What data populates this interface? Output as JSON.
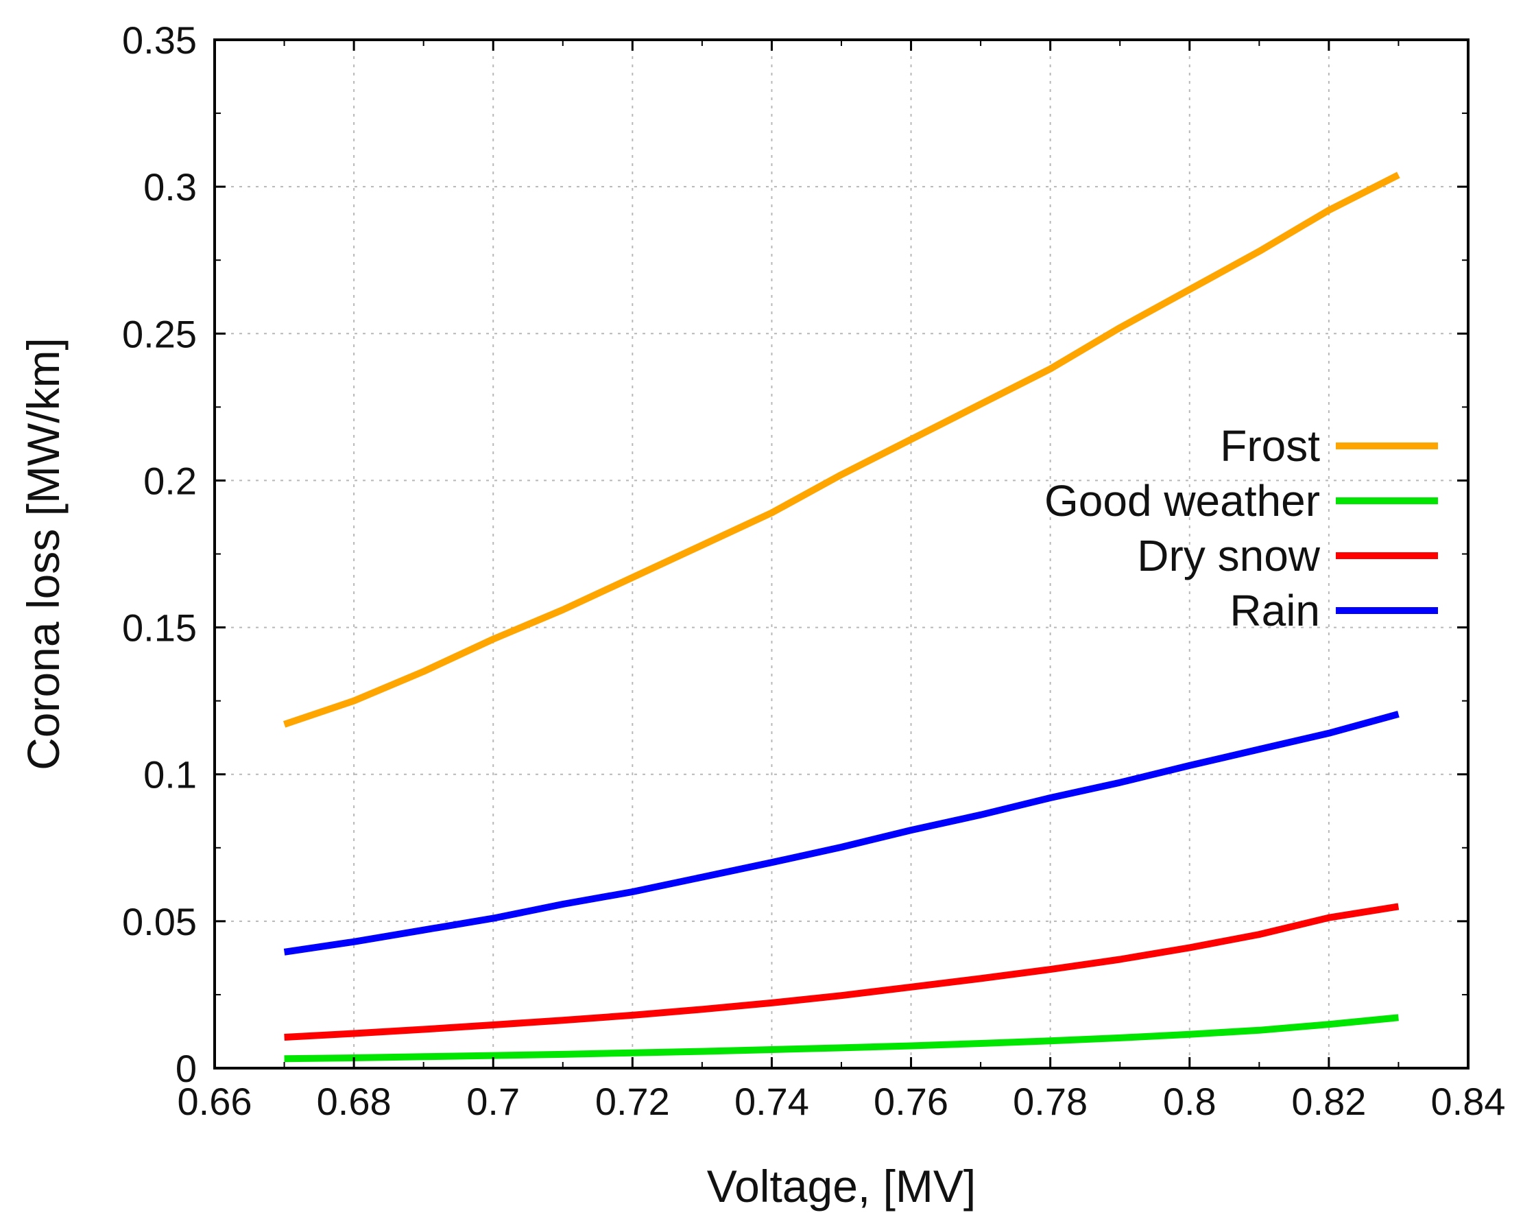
{
  "chart_data": {
    "type": "line",
    "title": "",
    "xlabel": "Voltage, [MV]",
    "ylabel": "Corona loss [MW/km]",
    "xlim": [
      0.66,
      0.84
    ],
    "ylim": [
      0,
      0.35
    ],
    "xticks": [
      0.66,
      0.68,
      0.7,
      0.72,
      0.74,
      0.76,
      0.78,
      0.8,
      0.82,
      0.84
    ],
    "xtick_labels": [
      "0.66",
      "0.68",
      "0.7",
      "0.72",
      "0.74",
      "0.76",
      "0.78",
      "0.8",
      "0.82",
      "0.84"
    ],
    "yticks": [
      0,
      0.05,
      0.1,
      0.15,
      0.2,
      0.25,
      0.3,
      0.35
    ],
    "ytick_labels": [
      "0",
      "0.05",
      "0.1",
      "0.15",
      "0.2",
      "0.25",
      "0.3",
      "0.35"
    ],
    "grid": true,
    "legend_position": "center-right",
    "x": [
      0.67,
      0.68,
      0.69,
      0.7,
      0.71,
      0.72,
      0.73,
      0.74,
      0.75,
      0.76,
      0.77,
      0.78,
      0.79,
      0.8,
      0.81,
      0.82,
      0.83
    ],
    "series": [
      {
        "name": "Frost",
        "color": "#ffa500",
        "values": [
          0.117,
          0.125,
          0.135,
          0.146,
          0.156,
          0.167,
          0.178,
          0.189,
          0.202,
          0.214,
          0.226,
          0.238,
          0.252,
          0.265,
          0.278,
          0.292,
          0.304
        ]
      },
      {
        "name": "Good weather",
        "color": "#00e600",
        "values": [
          0.0032,
          0.0035,
          0.0039,
          0.0043,
          0.0047,
          0.0052,
          0.0057,
          0.0063,
          0.0069,
          0.0076,
          0.0084,
          0.0093,
          0.0103,
          0.0115,
          0.0129,
          0.0149,
          0.0172
        ]
      },
      {
        "name": "Dry snow",
        "color": "#ff0000",
        "values": [
          0.0105,
          0.0118,
          0.0132,
          0.0147,
          0.0163,
          0.018,
          0.02,
          0.0222,
          0.0247,
          0.0276,
          0.0305,
          0.0336,
          0.037,
          0.041,
          0.0455,
          0.0512,
          0.055
        ]
      },
      {
        "name": "Rain",
        "color": "#0000ff",
        "values": [
          0.0395,
          0.043,
          0.047,
          0.051,
          0.0558,
          0.06,
          0.065,
          0.07,
          0.0752,
          0.081,
          0.0862,
          0.092,
          0.0972,
          0.103,
          0.1085,
          0.114,
          0.1205
        ]
      }
    ]
  }
}
